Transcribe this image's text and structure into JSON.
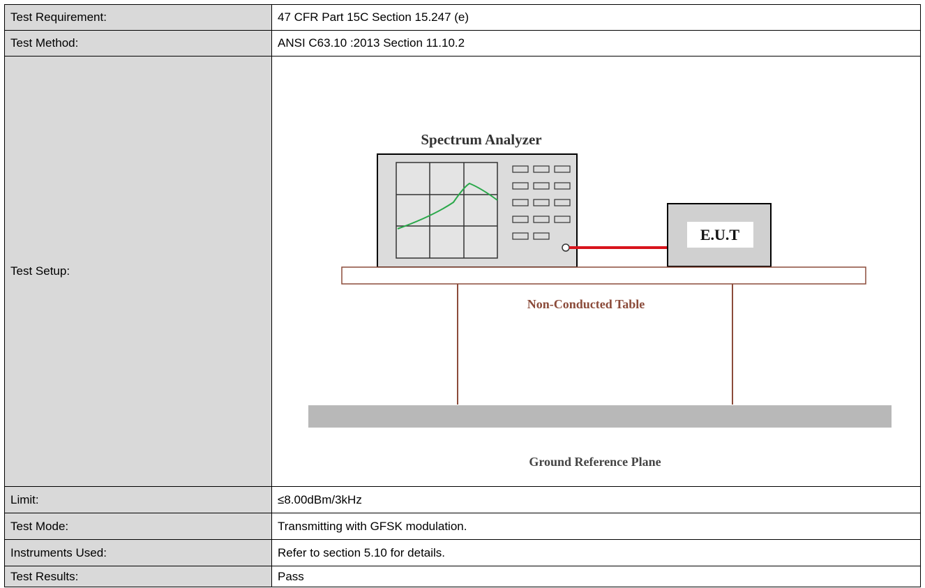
{
  "table": {
    "rows": [
      [
        "Test Requirement:",
        "47 CFR Part 15C Section 15.247 (e)"
      ],
      [
        "Test Method:",
        "ANSI C63.10 :2013 Section 11.10.2"
      ],
      [
        "Test Setup:"
      ],
      [
        "Limit:",
        "≤8.00dBm/3kHz"
      ],
      [
        "Test Mode:",
        "Transmitting with GFSK modulation."
      ],
      [
        "Instruments Used:",
        "Refer to section 5.10 for details."
      ],
      [
        "Test Results:",
        "Pass"
      ]
    ]
  },
  "diagram": {
    "analyzer": "Spectrum Analyzer",
    "eut": "E.U.T",
    "table": "Non-Conducted Table",
    "ground": "Ground Reference Plane"
  }
}
